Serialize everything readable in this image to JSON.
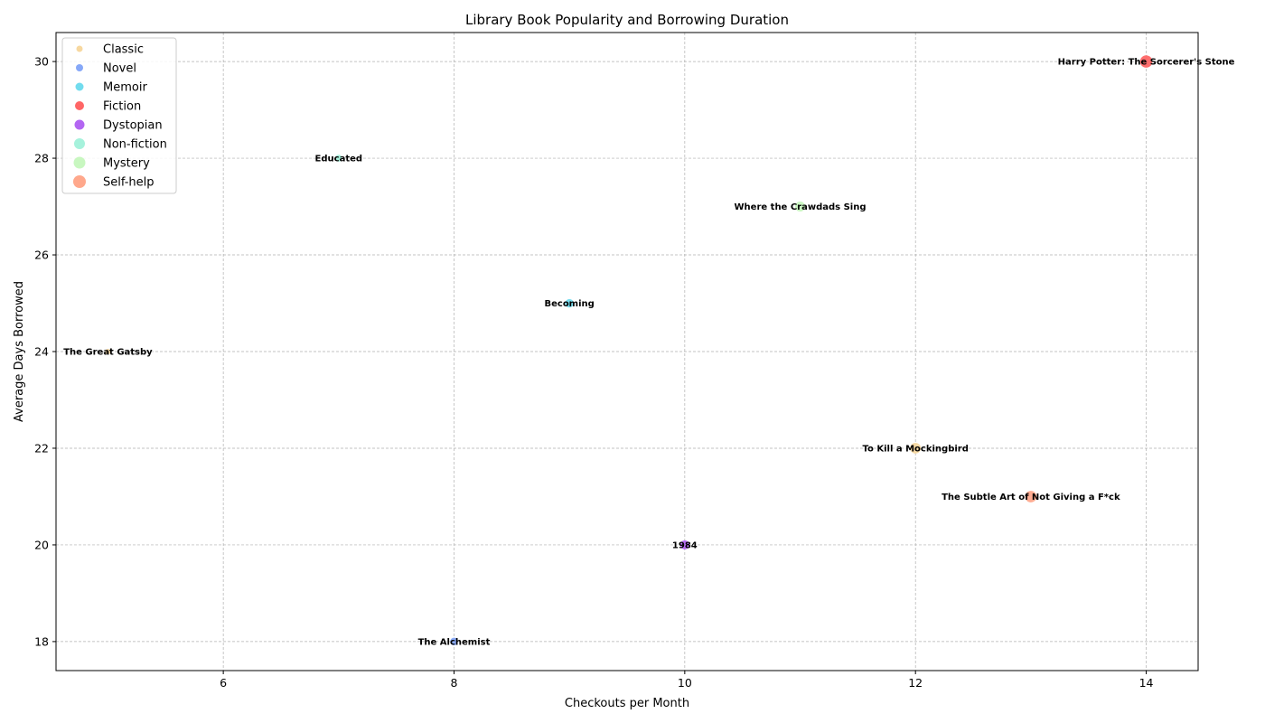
{
  "chart_data": {
    "type": "scatter",
    "title": "Library Book Popularity and Borrowing Duration",
    "xlabel": "Checkouts per Month",
    "ylabel": "Average Days Borrowed",
    "xlim": [
      4.55,
      14.45
    ],
    "ylim": [
      17.4,
      30.6
    ],
    "xticks": [
      6,
      8,
      10,
      12,
      14
    ],
    "yticks": [
      18,
      20,
      22,
      24,
      26,
      28,
      30
    ],
    "grid": true,
    "legend_position": "top-left",
    "categories": [
      {
        "name": "Classic",
        "color": "#f7d8a0"
      },
      {
        "name": "Novel",
        "color": "#86a8f8"
      },
      {
        "name": "Memoir",
        "color": "#72dcee"
      },
      {
        "name": "Fiction",
        "color": "#ff6666"
      },
      {
        "name": "Dystopian",
        "color": "#b366f2"
      },
      {
        "name": "Non-fiction",
        "color": "#a6f2dc"
      },
      {
        "name": "Mystery",
        "color": "#c8f7c0"
      },
      {
        "name": "Self-help",
        "color": "#ffa88c"
      }
    ],
    "points": [
      {
        "title": "Harry Potter: The Sorcerer's Stone",
        "genre": "Fiction",
        "x": 14,
        "y": 30
      },
      {
        "title": "Educated",
        "genre": "Non-fiction",
        "x": 7,
        "y": 28
      },
      {
        "title": "Where the Crawdads Sing",
        "genre": "Mystery",
        "x": 11,
        "y": 27
      },
      {
        "title": "Becoming",
        "genre": "Memoir",
        "x": 9,
        "y": 25
      },
      {
        "title": "The Great Gatsby",
        "genre": "Classic",
        "x": 5,
        "y": 24
      },
      {
        "title": "To Kill a Mockingbird",
        "genre": "Classic",
        "x": 12,
        "y": 22
      },
      {
        "title": "The Subtle Art of Not Giving a F*ck",
        "genre": "Self-help",
        "x": 13,
        "y": 21
      },
      {
        "title": "1984",
        "genre": "Dystopian",
        "x": 10,
        "y": 20
      },
      {
        "title": "The Alchemist",
        "genre": "Novel",
        "x": 8,
        "y": 18
      }
    ]
  }
}
